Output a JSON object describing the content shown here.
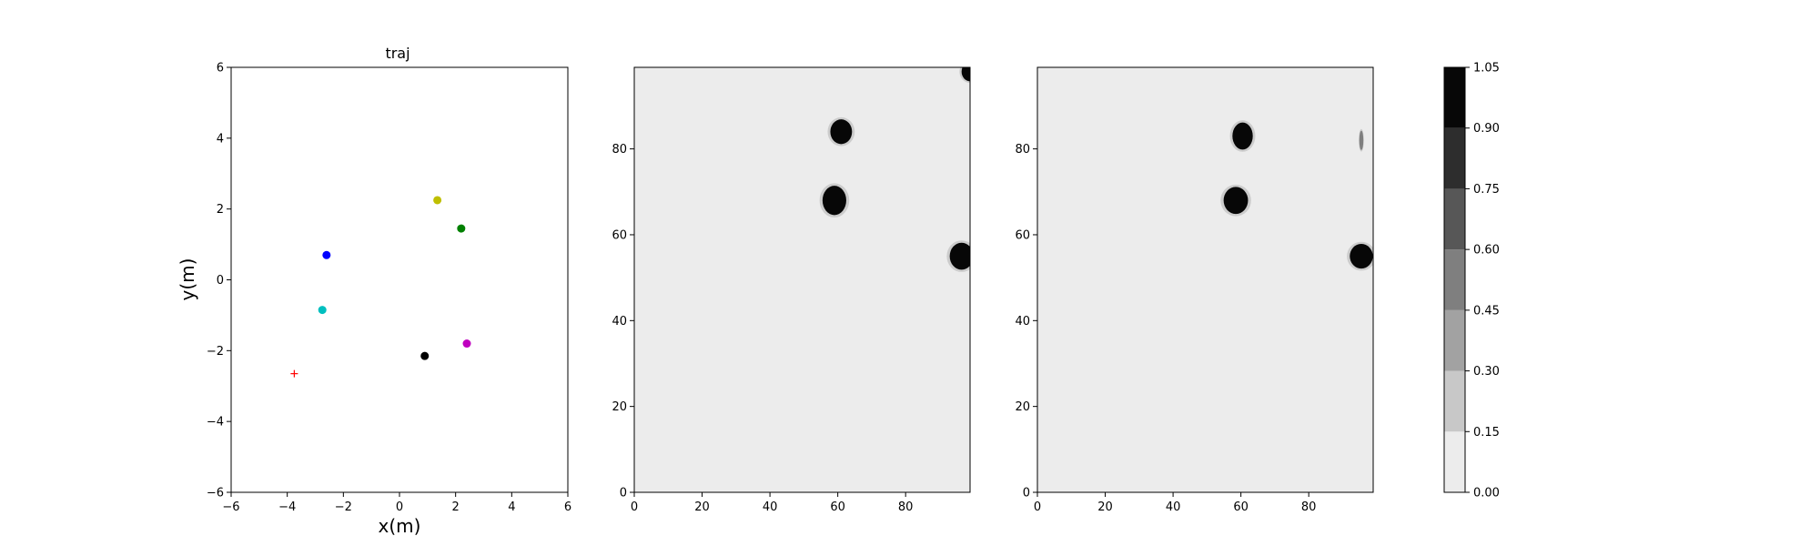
{
  "chart_data": [
    {
      "type": "scatter",
      "title": "traj",
      "xlabel": "x(m)",
      "ylabel": "y(m)",
      "xlim": [
        -6,
        6
      ],
      "ylim": [
        -6,
        6
      ],
      "xticks": [
        -6,
        -4,
        -2,
        0,
        2,
        4,
        6
      ],
      "yticks": [
        -6,
        -4,
        -2,
        0,
        2,
        4,
        6
      ],
      "grid": false,
      "points": [
        {
          "x": 1.35,
          "y": 2.25,
          "color": "#bfbf00",
          "marker": "dot"
        },
        {
          "x": 2.2,
          "y": 1.45,
          "color": "#008000",
          "marker": "dot"
        },
        {
          "x": -2.6,
          "y": 0.7,
          "color": "#0000ff",
          "marker": "dot"
        },
        {
          "x": -2.75,
          "y": -0.85,
          "color": "#00bfbf",
          "marker": "dot"
        },
        {
          "x": 2.4,
          "y": -1.8,
          "color": "#bf00bf",
          "marker": "dot"
        },
        {
          "x": 0.9,
          "y": -2.15,
          "color": "#000000",
          "marker": "dot"
        },
        {
          "x": -3.75,
          "y": -2.65,
          "color": "#ff0000",
          "marker": "plus"
        }
      ]
    },
    {
      "type": "heatmap",
      "title": "",
      "xlim": [
        0,
        99
      ],
      "ylim": [
        0,
        99
      ],
      "xticks": [
        0,
        20,
        40,
        60,
        80
      ],
      "yticks": [
        0,
        20,
        40,
        60,
        80
      ],
      "background_value": 0.0,
      "blobs": [
        {
          "cx": 61,
          "cy": 84,
          "rx": 3.2,
          "ry": 3.2,
          "value": 1.0
        },
        {
          "cx": 59,
          "cy": 68,
          "rx": 3.5,
          "ry": 3.8,
          "value": 1.0
        },
        {
          "cx": 96.5,
          "cy": 55,
          "rx": 3.5,
          "ry": 3.5,
          "value": 1.0
        },
        {
          "cx": 99,
          "cy": 98,
          "rx": 2.5,
          "ry": 2.5,
          "value": 1.0
        }
      ]
    },
    {
      "type": "heatmap",
      "title": "",
      "xlim": [
        0,
        99
      ],
      "ylim": [
        0,
        99
      ],
      "xticks": [
        0,
        20,
        40,
        60,
        80
      ],
      "yticks": [
        0,
        20,
        40,
        60,
        80
      ],
      "background_value": 0.0,
      "blobs": [
        {
          "cx": 60.5,
          "cy": 83,
          "rx": 3.0,
          "ry": 3.5,
          "value": 1.0
        },
        {
          "cx": 58.5,
          "cy": 68,
          "rx": 3.6,
          "ry": 3.5,
          "value": 1.0
        },
        {
          "cx": 95.5,
          "cy": 82,
          "rx": 0.6,
          "ry": 2.5,
          "value": 0.45
        },
        {
          "cx": 95.5,
          "cy": 55,
          "rx": 3.4,
          "ry": 3.2,
          "value": 1.0
        }
      ]
    },
    {
      "type": "colorbar",
      "levels": [
        0.0,
        0.15,
        0.3,
        0.45,
        0.6,
        0.75,
        0.9,
        1.05
      ],
      "tick_labels": [
        "0.00",
        "0.15",
        "0.30",
        "0.45",
        "0.60",
        "0.75",
        "0.90",
        "1.05"
      ],
      "colors": [
        "#ececec",
        "#c8c8c8",
        "#a2a2a2",
        "#7f7f7f",
        "#575757",
        "#2d2d2d",
        "#070707"
      ]
    }
  ]
}
